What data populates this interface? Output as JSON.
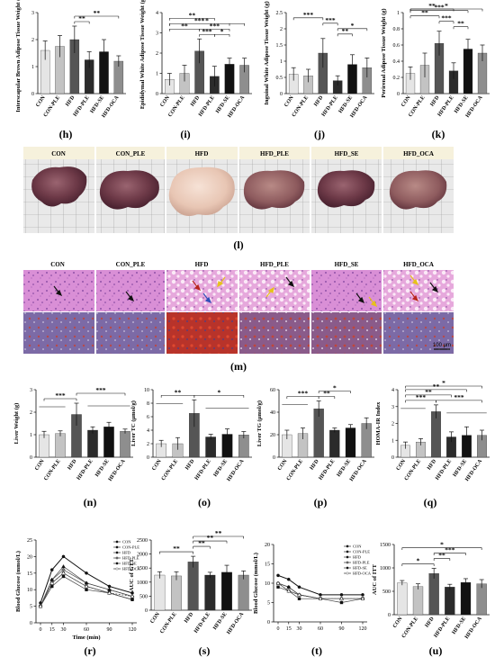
{
  "groups": [
    "CON",
    "CON-PLE",
    "HFD",
    "HFD-PLE",
    "HFD-SE",
    "HFD-OCA"
  ],
  "group_colors": [
    "#e5e5e5",
    "#c3c3c3",
    "#555555",
    "#2b2b2b",
    "#111111",
    "#8e8e8e"
  ],
  "panel_labels": {
    "h": "(h)",
    "i": "(i)",
    "j": "(j)",
    "k": "(k)",
    "l": "(l)",
    "m": "(m)",
    "n": "(n)",
    "o": "(o)",
    "p": "(p)",
    "q": "(q)",
    "r": "(r)",
    "s": "(s)",
    "t": "(t)",
    "u": "(u)"
  },
  "liver_columns": [
    "CON",
    "CON_PLE",
    "HFD",
    "HFD_PLE",
    "HFD_SE",
    "HFD_OCA"
  ],
  "histology_columns": [
    "CON",
    "CON_PLE",
    "HFD",
    "HFD_PLE",
    "HFD_SE",
    "HFD_OCA"
  ],
  "scale_bar": "100 μm",
  "chart_data": [
    {
      "id": "h",
      "type": "bar",
      "categories": [
        "CON",
        "CON-PLE",
        "HFD",
        "HFD-PLE",
        "HFD-SE",
        "HFD-OCA"
      ],
      "values": [
        1.6,
        1.75,
        2.0,
        1.25,
        1.55,
        1.2
      ],
      "errors": [
        0.35,
        0.4,
        0.5,
        0.3,
        0.45,
        0.2
      ],
      "ylabel": "Interscapular Brown Adipose Tissue Weight (g)",
      "ylim": [
        0,
        3
      ],
      "yticks": [
        0,
        1,
        2,
        3
      ],
      "sig": [
        {
          "from": 2,
          "to": 3,
          "text": "**",
          "level": 1
        },
        {
          "from": 2,
          "to": 5,
          "text": "**",
          "level": 2
        }
      ]
    },
    {
      "id": "i",
      "type": "bar",
      "categories": [
        "CON",
        "CON-PLE",
        "HFD",
        "HFD-PLE",
        "HFD-SE",
        "HFD-OCA"
      ],
      "values": [
        0.7,
        1.0,
        2.1,
        0.85,
        1.45,
        1.4
      ],
      "errors": [
        0.3,
        0.4,
        0.6,
        0.5,
        0.3,
        0.35
      ],
      "ylabel": "Epididymal White Adipose Tissue Weight (g)",
      "ylim": [
        0,
        4
      ],
      "yticks": [
        0,
        1,
        2,
        3,
        4
      ],
      "sig": [
        {
          "from": 3,
          "to": 4,
          "text": "*",
          "level": 1
        },
        {
          "from": 2,
          "to": 4,
          "text": "***",
          "level": 2
        },
        {
          "from": 2,
          "to": 3,
          "text": "***",
          "level": 1
        },
        {
          "from": 0,
          "to": 2,
          "text": "**",
          "level": 2
        },
        {
          "from": 0,
          "to": 4,
          "text": "***",
          "level": 3
        },
        {
          "from": 0,
          "to": 5,
          "text": "*",
          "level": 3
        },
        {
          "from": 0,
          "to": 3,
          "text": "**",
          "level": 4
        }
      ]
    },
    {
      "id": "j",
      "type": "bar",
      "categories": [
        "CON",
        "CON-PLE",
        "HFD",
        "HFD-PLE",
        "HFD-SE",
        "HFD-OCA"
      ],
      "values": [
        0.6,
        0.55,
        1.25,
        0.4,
        0.9,
        0.8
      ],
      "errors": [
        0.2,
        0.2,
        0.45,
        0.15,
        0.3,
        0.3
      ],
      "ylabel": "Inguinal White Adipose Tissue Weight (g)",
      "ylim": [
        0,
        2.5
      ],
      "yticks": [
        0,
        0.5,
        1.0,
        1.5,
        2.0,
        2.5
      ],
      "sig": [
        {
          "from": 3,
          "to": 4,
          "text": "**",
          "level": 1
        },
        {
          "from": 3,
          "to": 5,
          "text": "*",
          "level": 2
        },
        {
          "from": 2,
          "to": 3,
          "text": "***",
          "level": 3
        },
        {
          "from": 0,
          "to": 2,
          "text": "***",
          "level": 4
        }
      ]
    },
    {
      "id": "k",
      "type": "bar",
      "categories": [
        "CON",
        "CON-PLE",
        "HFD",
        "HFD-PLE",
        "HFD-SE",
        "HFD-OCA"
      ],
      "values": [
        0.25,
        0.35,
        0.62,
        0.28,
        0.55,
        0.5
      ],
      "errors": [
        0.08,
        0.15,
        0.15,
        0.1,
        0.12,
        0.1
      ],
      "ylabel": "Perirenal Adipose Tissue Weight (g)",
      "ylim": [
        0,
        1.0
      ],
      "yticks": [
        0,
        0.2,
        0.4,
        0.6,
        0.8,
        1.0
      ],
      "sig": [
        {
          "from": 3,
          "to": 4,
          "text": "**",
          "level": 1
        },
        {
          "from": 2,
          "to": 3,
          "text": "***",
          "level": 2
        },
        {
          "from": 0,
          "to": 2,
          "text": "**",
          "level": 3
        },
        {
          "from": 0,
          "to": 4,
          "text": "***",
          "level": 4
        },
        {
          "from": 0,
          "to": 3,
          "text": "**",
          "level": 5
        },
        {
          "from": 0,
          "to": 5,
          "text": "*",
          "level": 6
        }
      ]
    },
    {
      "id": "n",
      "type": "bar",
      "categories": [
        "CON",
        "CON-PLE",
        "HFD",
        "HFD-PLE",
        "HFD-SE",
        "HFD-OCA"
      ],
      "values": [
        1.0,
        1.05,
        1.9,
        1.2,
        1.35,
        1.15
      ],
      "errors": [
        0.15,
        0.12,
        0.5,
        0.15,
        0.2,
        0.1
      ],
      "ylabel": "Liver Weight (g)",
      "ylim": [
        0,
        3
      ],
      "yticks": [
        0,
        1,
        2,
        3
      ],
      "sig": [
        {
          "from": 0,
          "to": 2,
          "text": "***",
          "level": 1,
          "group_left": [
            0,
            1
          ]
        },
        {
          "from": 2,
          "to": 5,
          "text": "***",
          "level": 2,
          "group_right": [
            3,
            5
          ]
        }
      ]
    },
    {
      "id": "o",
      "type": "bar",
      "categories": [
        "CON",
        "CON-PLE",
        "HFD",
        "HFD-PLE",
        "HFD-SE",
        "HFD-OCA"
      ],
      "values": [
        2.0,
        2.0,
        6.5,
        3.0,
        3.4,
        3.3
      ],
      "errors": [
        0.5,
        0.9,
        2.0,
        0.4,
        0.8,
        0.5
      ],
      "ylabel": "Liver TC (μmol/g)",
      "ylim": [
        0,
        10
      ],
      "yticks": [
        0,
        2,
        4,
        6,
        8,
        10
      ],
      "sig": [
        {
          "from": 0,
          "to": 2,
          "text": "**",
          "level": 1,
          "group_left": [
            0,
            1
          ]
        },
        {
          "from": 2,
          "to": 5,
          "text": "*",
          "level": 1,
          "group_right": [
            3,
            5
          ]
        }
      ]
    },
    {
      "id": "p",
      "type": "bar",
      "categories": [
        "CON",
        "CON-PLE",
        "HFD",
        "HFD-PLE",
        "HFD-SE",
        "HFD-OCA"
      ],
      "values": [
        20,
        21,
        43,
        24,
        26,
        30
      ],
      "errors": [
        4,
        5,
        7,
        2,
        3,
        5
      ],
      "ylabel": "Liver TG (μmol/g)",
      "ylim": [
        0,
        60
      ],
      "yticks": [
        0,
        20,
        40,
        60
      ],
      "sig": [
        {
          "from": 0,
          "to": 2,
          "text": "***",
          "level": 1,
          "group_left": [
            0,
            1
          ]
        },
        {
          "from": 2,
          "to": 3,
          "text": "**",
          "level": 1
        },
        {
          "from": 2,
          "to": 4,
          "text": "*",
          "level": 2
        }
      ]
    },
    {
      "id": "q",
      "type": "bar",
      "categories": [
        "CON",
        "CON-PLE",
        "HFD",
        "HFD-PLE",
        "HFD-SE",
        "HFD-OCA"
      ],
      "values": [
        0.7,
        0.9,
        2.7,
        1.2,
        1.3,
        1.3
      ],
      "errors": [
        0.2,
        0.2,
        0.4,
        0.3,
        0.5,
        0.3
      ],
      "ylabel": "HOMA-IR Index",
      "ylim": [
        0,
        4
      ],
      "yticks": [
        0,
        1,
        2,
        3,
        4
      ],
      "sig": [
        {
          "from": 0,
          "to": 2,
          "text": "***",
          "level": 1,
          "group_left": [
            0,
            1
          ]
        },
        {
          "from": 2,
          "to": 5,
          "text": "***",
          "level": 1,
          "group_right": [
            3,
            5
          ]
        },
        {
          "from": 0,
          "to": 3,
          "text": "**",
          "level": 2
        },
        {
          "from": 0,
          "to": 4,
          "text": "**",
          "level": 3
        },
        {
          "from": 0,
          "to": 5,
          "text": "*",
          "level": 4
        }
      ]
    },
    {
      "id": "r",
      "type": "line",
      "x": [
        0,
        15,
        30,
        60,
        90,
        120
      ],
      "xlabel": "Time (min)",
      "ylabel": "Blood Glucose (mmol/L)",
      "ylim": [
        0,
        25
      ],
      "yticks": [
        0,
        5,
        10,
        15,
        20,
        25
      ],
      "series": [
        {
          "name": "CON",
          "values": [
            5,
            12,
            15,
            11,
            9,
            7
          ]
        },
        {
          "name": "CON-PLE",
          "values": [
            5,
            11,
            14,
            10,
            9,
            7
          ]
        },
        {
          "name": "HFD",
          "values": [
            6,
            16,
            20,
            15,
            11,
            9
          ]
        },
        {
          "name": "HFD-PLE",
          "values": [
            5,
            13,
            16,
            12,
            10,
            8
          ]
        },
        {
          "name": "HFD-SE",
          "values": [
            5,
            13,
            17,
            12,
            10,
            8
          ]
        },
        {
          "name": "HFD-OCA",
          "values": [
            5,
            12,
            15,
            11,
            9,
            8
          ]
        }
      ]
    },
    {
      "id": "s",
      "type": "bar",
      "categories": [
        "CON",
        "CON-PLE",
        "HFD",
        "HFD-PLE",
        "HFD-SE",
        "HFD-OCA"
      ],
      "values": [
        1250,
        1220,
        1720,
        1250,
        1350,
        1250
      ],
      "errors": [
        120,
        150,
        200,
        100,
        250,
        150
      ],
      "ylabel": "AUC of GTT",
      "ylim": [
        0,
        2500
      ],
      "yticks": [
        0,
        500,
        1000,
        1500,
        2000,
        2500
      ],
      "sig": [
        {
          "from": 0,
          "to": 2,
          "text": "**",
          "level": 1
        },
        {
          "from": 2,
          "to": 3,
          "text": "**",
          "level": 2
        },
        {
          "from": 2,
          "to": 4,
          "text": "**",
          "level": 3
        },
        {
          "from": 2,
          "to": 5,
          "text": "**",
          "level": 4
        }
      ]
    },
    {
      "id": "t",
      "type": "line",
      "x": [
        0,
        15,
        30,
        60,
        90,
        120
      ],
      "ylabel": "Blood Glucose (mmol/L)",
      "ylim": [
        0,
        20
      ],
      "yticks": [
        0,
        5,
        10,
        15,
        20
      ],
      "series": [
        {
          "name": "CON",
          "values": [
            10,
            9,
            7,
            6,
            6,
            6
          ]
        },
        {
          "name": "CON-PLE",
          "values": [
            9,
            8,
            6,
            6,
            5,
            6
          ]
        },
        {
          "name": "HFD",
          "values": [
            12,
            11,
            9,
            7,
            7,
            7
          ]
        },
        {
          "name": "HFD-PLE",
          "values": [
            10,
            8,
            7,
            6,
            6,
            6
          ]
        },
        {
          "name": "HFD-SE",
          "values": [
            10,
            9,
            7,
            6,
            6,
            6
          ]
        },
        {
          "name": "HFD-OCA",
          "values": [
            10,
            8,
            7,
            6,
            6,
            6
          ]
        }
      ]
    },
    {
      "id": "u",
      "type": "bar",
      "categories": [
        "CON",
        "CON-PLE",
        "HFD",
        "HFD-PLE",
        "HFD-SE",
        "HFD-OCA"
      ],
      "values": [
        680,
        600,
        880,
        590,
        690,
        660
      ],
      "errors": [
        50,
        60,
        110,
        60,
        80,
        90
      ],
      "ylabel": "AUC of ITT",
      "ylim": [
        0,
        1500
      ],
      "yticks": [
        0,
        500,
        1000,
        1500
      ],
      "sig": [
        {
          "from": 0,
          "to": 2,
          "text": "*",
          "level": 1
        },
        {
          "from": 2,
          "to": 3,
          "text": "**",
          "level": 2
        },
        {
          "from": 2,
          "to": 4,
          "text": "***",
          "level": 3
        },
        {
          "from": 0,
          "to": 5,
          "text": "*",
          "level": 4
        }
      ]
    }
  ]
}
